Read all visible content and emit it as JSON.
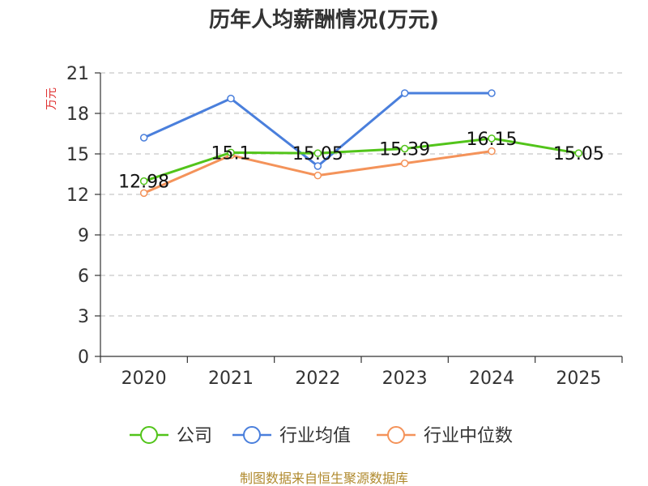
{
  "chart_data": {
    "type": "line",
    "title": "历年人均薪酬情况(万元)",
    "xlabel": "",
    "ylabel": "万元",
    "categories": [
      "2020",
      "2021",
      "2022",
      "2023",
      "2024",
      "2025"
    ],
    "ylim": [
      0,
      21
    ],
    "yticks": [
      0,
      3,
      6,
      9,
      12,
      15,
      18,
      21
    ],
    "grid": true,
    "legend_position": "bottom",
    "series": [
      {
        "name": "公司",
        "color": "#52c41a",
        "values": [
          12.98,
          15.1,
          15.05,
          15.39,
          16.15,
          15.05
        ],
        "labels": [
          "12.98",
          "15.1",
          "15.05",
          "15.39",
          "16.15",
          "15.05"
        ],
        "show_labels": true
      },
      {
        "name": "行业均值",
        "color": "#4a7fdc",
        "values": [
          16.2,
          19.1,
          14.1,
          19.5,
          19.5,
          null
        ],
        "show_labels": false
      },
      {
        "name": "行业中位数",
        "color": "#f4935a",
        "values": [
          12.1,
          14.9,
          13.4,
          14.3,
          15.2,
          null
        ],
        "show_labels": false
      }
    ],
    "source": "制图数据来自恒生聚源数据库"
  }
}
